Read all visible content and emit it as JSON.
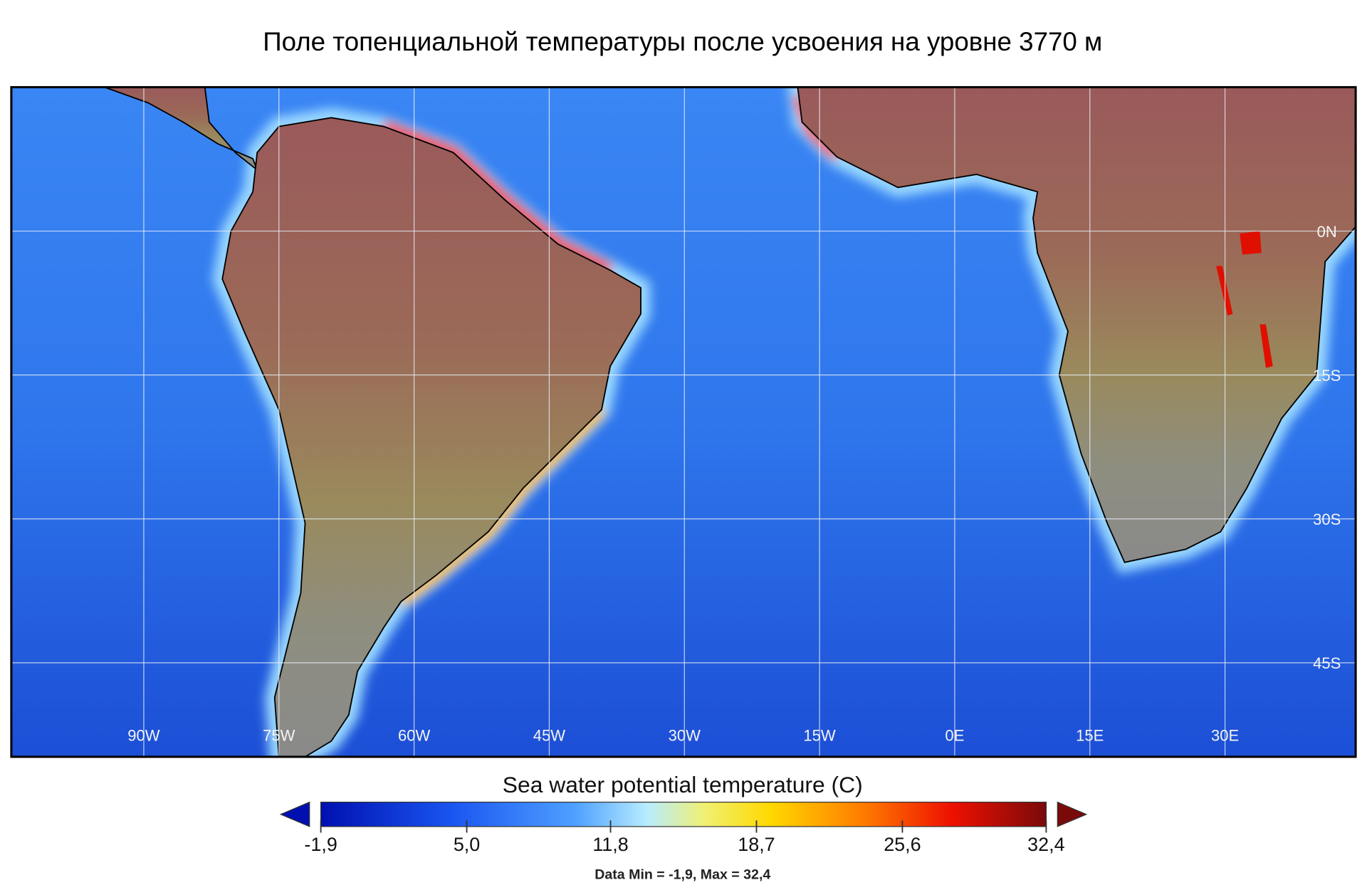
{
  "title": "Поле топенциальной температуры после усвоения на уровне 3770 м",
  "map": {
    "lonlim": [
      -104.7,
      44.5
    ],
    "latlim": [
      15,
      -54.8
    ],
    "lon_labels": [
      {
        "value": -90,
        "label": "90W"
      },
      {
        "value": -75,
        "label": "75W"
      },
      {
        "value": -60,
        "label": "60W"
      },
      {
        "value": -45,
        "label": "45W"
      },
      {
        "value": -30,
        "label": "30W"
      },
      {
        "value": -15,
        "label": "15W"
      },
      {
        "value": 0,
        "label": "0E"
      },
      {
        "value": 15,
        "label": "15E"
      },
      {
        "value": 30,
        "label": "30E"
      }
    ],
    "lat_labels": [
      {
        "value": 0,
        "label": "0N"
      },
      {
        "value": -15,
        "label": "15S"
      },
      {
        "value": -30,
        "label": "30S"
      },
      {
        "value": -45,
        "label": "45S"
      }
    ]
  },
  "colorbar": {
    "label": "Sea water potential temperature (C)",
    "range": [
      -1.9,
      32.4
    ],
    "ticks": [
      {
        "value": -1.9,
        "label": "-1,9"
      },
      {
        "value": 5.0,
        "label": "5,0"
      },
      {
        "value": 11.8,
        "label": "11,8"
      },
      {
        "value": 18.7,
        "label": "18,7"
      },
      {
        "value": 25.6,
        "label": "25,6"
      },
      {
        "value": 32.4,
        "label": "32,4"
      }
    ]
  },
  "footer": "Data Min = -1,9, Max = 32,4"
}
